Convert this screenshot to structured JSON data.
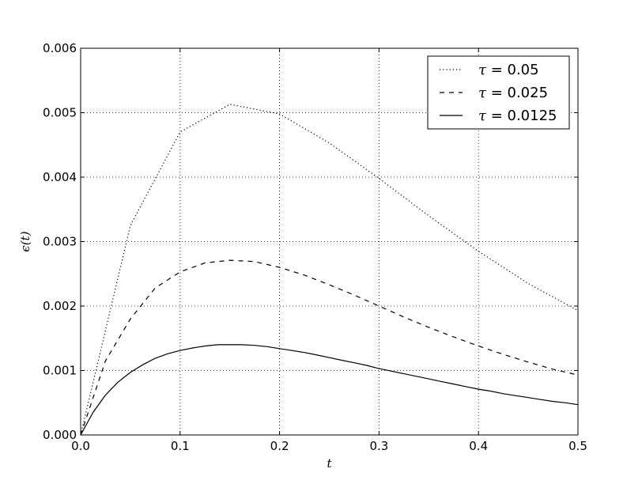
{
  "chart_data": {
    "type": "line",
    "xlabel": "t",
    "ylabel": "ϵ(t)",
    "xlim": [
      0.0,
      0.5
    ],
    "ylim": [
      0.0,
      0.006
    ],
    "x_ticks": [
      "0.0",
      "0.1",
      "0.2",
      "0.3",
      "0.4",
      "0.5"
    ],
    "y_ticks": [
      "0.000",
      "0.001",
      "0.002",
      "0.003",
      "0.004",
      "0.005",
      "0.006"
    ],
    "grid": true,
    "legend_position": "top-right",
    "series": [
      {
        "name": "τ = 0.05",
        "tau": "0.05",
        "style": "dotted",
        "x": [
          0.0,
          0.05,
          0.1,
          0.15,
          0.2,
          0.25,
          0.3,
          0.35,
          0.4,
          0.45,
          0.5
        ],
        "y": [
          0.0,
          0.00325,
          0.0047,
          0.00513,
          0.00498,
          0.00453,
          0.00398,
          0.0034,
          0.00285,
          0.00235,
          0.00193
        ]
      },
      {
        "name": "τ = 0.025",
        "tau": "0.025",
        "style": "dashed",
        "x": [
          0.0,
          0.025,
          0.05,
          0.075,
          0.1,
          0.125,
          0.15,
          0.175,
          0.2,
          0.225,
          0.25,
          0.275,
          0.3,
          0.325,
          0.35,
          0.375,
          0.4,
          0.425,
          0.45,
          0.475,
          0.5
        ],
        "y": [
          0.0,
          0.00115,
          0.0018,
          0.00228,
          0.00253,
          0.00267,
          0.00271,
          0.00269,
          0.0026,
          0.00248,
          0.00233,
          0.00217,
          0.002,
          0.00183,
          0.00167,
          0.00152,
          0.00138,
          0.00125,
          0.00113,
          0.00102,
          0.00093
        ]
      },
      {
        "name": "τ = 0.0125",
        "tau": "0.0125",
        "style": "solid",
        "x": [
          0.0,
          0.0125,
          0.025,
          0.0375,
          0.05,
          0.0625,
          0.075,
          0.0875,
          0.1,
          0.1125,
          0.125,
          0.1375,
          0.15,
          0.1625,
          0.175,
          0.1875,
          0.2,
          0.2125,
          0.225,
          0.2375,
          0.25,
          0.2625,
          0.275,
          0.2875,
          0.3,
          0.3125,
          0.325,
          0.3375,
          0.35,
          0.3625,
          0.375,
          0.3875,
          0.4,
          0.4125,
          0.425,
          0.4375,
          0.45,
          0.4625,
          0.475,
          0.4875,
          0.5
        ],
        "y": [
          0.0,
          0.00035,
          0.00062,
          0.00082,
          0.00097,
          0.00109,
          0.00119,
          0.00126,
          0.00131,
          0.00135,
          0.00138,
          0.0014,
          0.0014,
          0.0014,
          0.00139,
          0.00137,
          0.00134,
          0.00131,
          0.00128,
          0.00124,
          0.0012,
          0.00116,
          0.00112,
          0.00108,
          0.00103,
          0.00099,
          0.00095,
          0.00091,
          0.00087,
          0.00083,
          0.00079,
          0.00075,
          0.00071,
          0.00068,
          0.00064,
          0.00061,
          0.00058,
          0.00055,
          0.00052,
          0.0005,
          0.00047
        ]
      }
    ]
  }
}
